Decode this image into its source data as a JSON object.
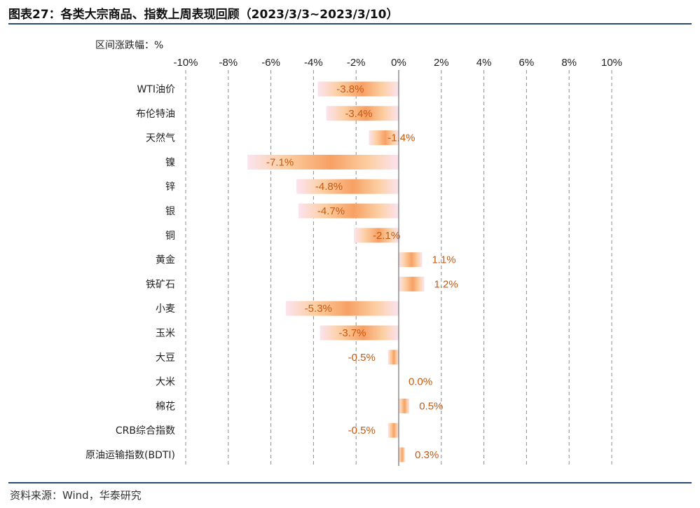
{
  "figure": {
    "title": "图表27：各类大宗商品、指数上周表现回顾（2023/3/3~2023/3/10）",
    "source": "资料来源：Wind，华泰研究"
  },
  "chart_data": {
    "type": "bar",
    "orientation": "horizontal",
    "ylabel_unit": "区间涨跌幅：%",
    "xlim": [
      -10,
      10
    ],
    "x_ticks": [
      "-10%",
      "-8%",
      "-6%",
      "-4%",
      "-2%",
      "0%",
      "2%",
      "4%",
      "6%",
      "8%",
      "10%"
    ],
    "grid": "vertical-dashed",
    "categories": [
      "WTI油价",
      "布伦特油",
      "天然气",
      "镍",
      "锌",
      "银",
      "铜",
      "黄金",
      "铁矿石",
      "小麦",
      "玉米",
      "大豆",
      "大米",
      "棉花",
      "CRB综合指数",
      "原油运输指数(BDTI)"
    ],
    "values": [
      -3.8,
      -3.4,
      -1.4,
      -7.1,
      -4.8,
      -4.7,
      -2.1,
      1.1,
      1.2,
      -5.3,
      -3.7,
      -0.5,
      0.0,
      0.5,
      -0.5,
      0.3
    ],
    "value_labels": [
      "-3.8%",
      "-3.4%",
      "-1.4%",
      "-7.1%",
      "-4.8%",
      "-4.7%",
      "-2.1%",
      "1.1%",
      "1.2%",
      "-5.3%",
      "-3.7%",
      "-0.5%",
      "0.0%",
      "0.5%",
      "-0.5%",
      "0.3%"
    ],
    "colors": {
      "bar_dark": "#f7a064",
      "bar_light": "#fde2c8",
      "bar_edge": "#fbe3ef",
      "label": "#c55a11",
      "axis": "#555555"
    }
  }
}
